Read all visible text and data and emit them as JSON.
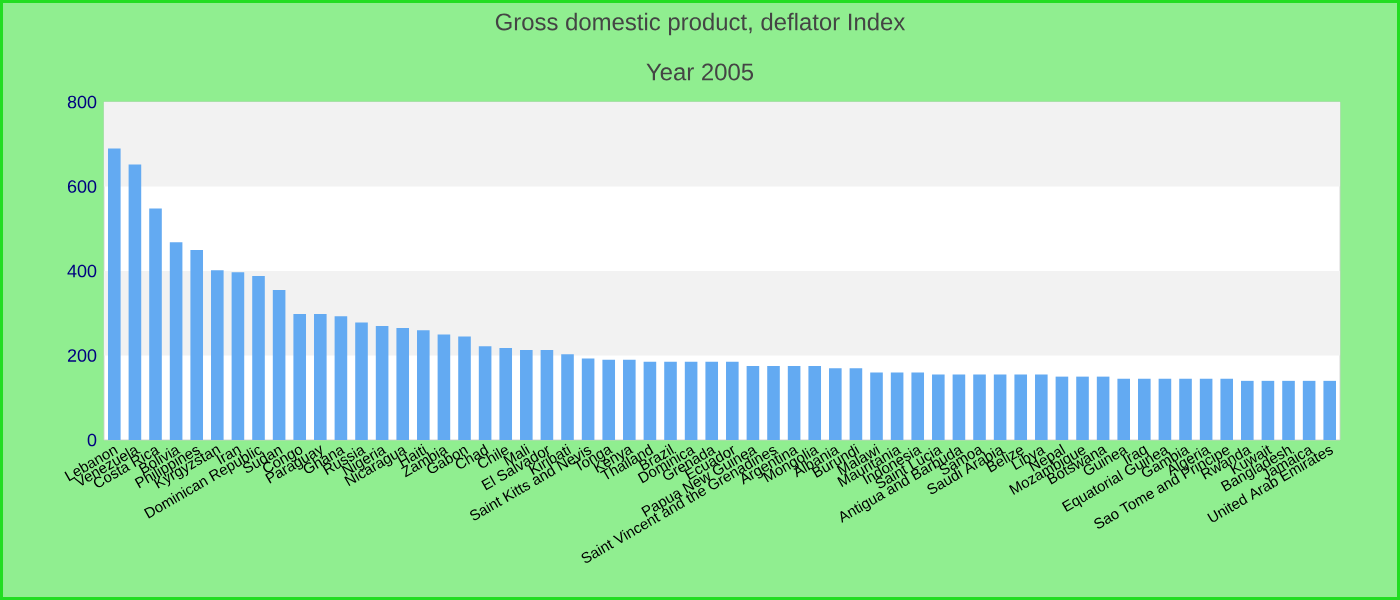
{
  "chart_data": {
    "type": "bar",
    "title": "Gross domestic product, deflator  Index",
    "subtitle": "Year 2005",
    "categories": [
      "Lebanon",
      "Venezuela",
      "Costa Rica",
      "Bolivia",
      "Philippines",
      "Kyrgyzstan",
      "Iran",
      "Dominican Republic",
      "Sudan",
      "Congo",
      "Paraguay",
      "Ghana",
      "Russia",
      "Nigeria",
      "Nicaragua",
      "Haiti",
      "Zambia",
      "Gabon",
      "Chad",
      "Chile",
      "Mali",
      "El Salvador",
      "Kiribati",
      "Saint Kitts and Nevis",
      "Tonga",
      "Kenya",
      "Thailand",
      "Brazil",
      "Dominica",
      "Grenada",
      "Ecuador",
      "Papua New Guinea",
      "Saint Vincent and the Grenadines",
      "Argentina",
      "Mongolia",
      "Albania",
      "Burundi",
      "Malawi",
      "Mauritania",
      "Indonesia",
      "Saint Lucia",
      "Antigua and Barbuda",
      "Samoa",
      "Saudi Arabia",
      "Belize",
      "Libya",
      "Nepal",
      "Mozambique",
      "Botswana",
      "Guinea",
      "Iraq",
      "Equatorial Guinea",
      "Gambia",
      "Algeria",
      "Sao Tome and Principe",
      "Rwanda",
      "Kuwait",
      "Bangladesh",
      "Jamaica",
      "United Arab Emirates"
    ],
    "values": [
      690,
      652,
      548,
      468,
      450,
      402,
      397,
      388,
      355,
      298,
      298,
      293,
      278,
      270,
      265,
      260,
      250,
      245,
      222,
      218,
      213,
      213,
      203,
      193,
      190,
      190,
      185,
      185,
      185,
      185,
      185,
      175,
      175,
      175,
      175,
      170,
      170,
      160,
      160,
      160,
      155,
      155,
      155,
      155,
      155,
      155,
      150,
      150,
      150,
      145,
      145,
      145,
      145,
      145,
      145,
      140,
      140,
      140,
      140,
      140
    ],
    "color": "#63aaf2",
    "ylim": [
      0,
      800
    ],
    "yticks": [
      0,
      200,
      400,
      600,
      800
    ]
  }
}
